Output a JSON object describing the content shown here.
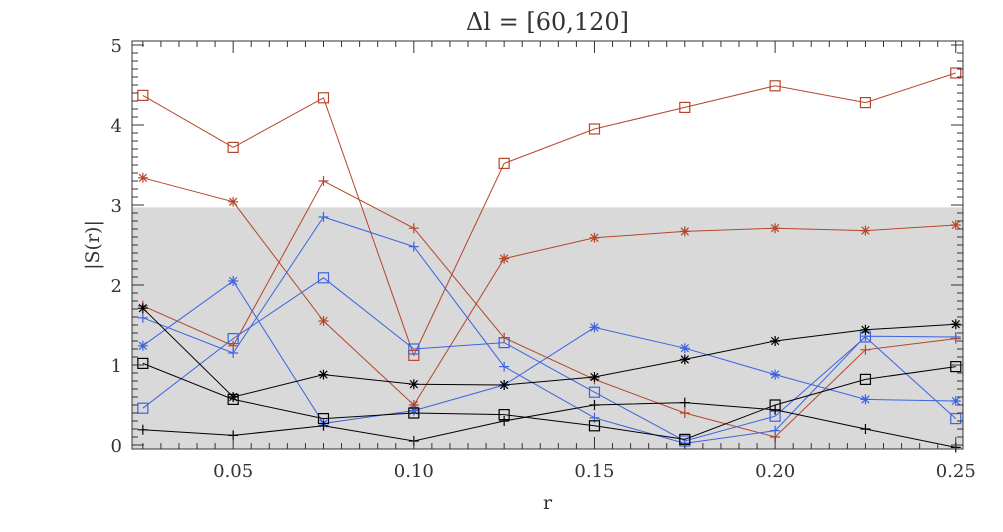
{
  "chart_data": {
    "type": "line",
    "title": "Δl  =  [60,120]",
    "xlabel": "r",
    "ylabel": "|S(r)|",
    "xlim": [
      0.022,
      0.252
    ],
    "ylim": [
      -0.05,
      5.05
    ],
    "xticks": [
      0.05,
      0.1,
      0.15,
      0.2,
      0.25
    ],
    "xtick_labels": [
      "0.05",
      "0.10",
      "0.15",
      "0.20",
      "0.25"
    ],
    "yticks": [
      0,
      1,
      2,
      3,
      4,
      5
    ],
    "ytick_labels": [
      "0",
      "1",
      "2",
      "3",
      "4",
      "5"
    ],
    "shaded_band": {
      "y0": -0.05,
      "y1": 2.97,
      "color": "#d9d9d9"
    },
    "grid": false,
    "x": [
      0.025,
      0.05,
      0.075,
      0.1,
      0.125,
      0.15,
      0.175,
      0.2,
      0.225,
      0.25
    ],
    "series": [
      {
        "color": "#b5462a",
        "marker": "square",
        "values": [
          4.37,
          3.72,
          4.34,
          1.12,
          3.52,
          3.95,
          4.22,
          4.49,
          4.28,
          4.65
        ]
      },
      {
        "color": "#b5462a",
        "marker": "asterisk",
        "values": [
          3.34,
          3.04,
          1.55,
          0.5,
          2.33,
          2.59,
          2.67,
          2.71,
          2.68,
          2.75
        ]
      },
      {
        "color": "#b5462a",
        "marker": "plus",
        "values": [
          1.74,
          1.24,
          3.3,
          2.71,
          1.34,
          0.82,
          0.4,
          0.1,
          1.19,
          1.33
        ]
      },
      {
        "color": "#3c63e0",
        "marker": "square",
        "values": [
          0.46,
          1.33,
          2.09,
          1.2,
          1.28,
          0.66,
          0.05,
          0.36,
          1.35,
          0.33
        ]
      },
      {
        "color": "#3c63e0",
        "marker": "asterisk",
        "values": [
          1.24,
          2.05,
          0.27,
          0.43,
          0.75,
          1.47,
          1.21,
          0.88,
          0.57,
          0.55
        ]
      },
      {
        "color": "#3c63e0",
        "marker": "plus",
        "values": [
          1.59,
          1.15,
          2.85,
          2.48,
          0.98,
          0.34,
          0.02,
          0.18,
          1.36,
          1.35
        ]
      },
      {
        "color": "#000000",
        "marker": "square",
        "values": [
          1.02,
          0.57,
          0.33,
          0.4,
          0.38,
          0.24,
          0.07,
          0.5,
          0.82,
          0.98
        ]
      },
      {
        "color": "#000000",
        "marker": "asterisk",
        "values": [
          1.71,
          0.6,
          0.88,
          0.76,
          0.75,
          0.85,
          1.07,
          1.3,
          1.44,
          1.51
        ]
      },
      {
        "color": "#000000",
        "marker": "plus",
        "values": [
          0.19,
          0.12,
          0.24,
          0.05,
          0.3,
          0.5,
          0.53,
          0.44,
          0.2,
          -0.03
        ]
      }
    ]
  }
}
